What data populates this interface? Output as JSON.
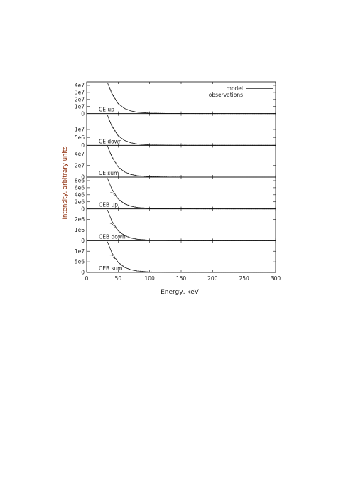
{
  "chart_data": {
    "type": "line",
    "xlabel": "Energy, keV",
    "ylabel": "Intensity, arbitrary units",
    "xlim": [
      0,
      300
    ],
    "xticks": [
      "0",
      "50",
      "100",
      "150",
      "200",
      "250",
      "300"
    ],
    "legend": {
      "placement": "top-right",
      "entries": [
        {
          "name": "model",
          "style": "solid"
        },
        {
          "name": "observations",
          "style": "dotted"
        }
      ]
    },
    "panels": [
      {
        "label": "CE up",
        "ylim": [
          0,
          45000000
        ],
        "yticks": [
          {
            "v": 0,
            "t": "0"
          },
          {
            "v": 10000000,
            "t": "1e7"
          },
          {
            "v": 20000000,
            "t": "2e7"
          },
          {
            "v": 30000000,
            "t": "3e7"
          },
          {
            "v": 40000000,
            "t": "4e7"
          }
        ],
        "series": [
          {
            "name": "model",
            "x": [
              33,
              40,
              50,
              60,
              70,
              80,
              100,
              130,
              170,
              220,
              300
            ],
            "y": [
              44000000,
              28000000,
              14000000,
              7200000,
              3800000,
              2000000,
              600000,
              150000,
              40000,
              10000,
              0
            ]
          },
          {
            "name": "observations",
            "x": [
              35,
              40,
              50,
              60,
              70,
              80,
              100,
              130,
              170,
              220,
              300
            ],
            "y": [
              40000000,
              29000000,
              14500000,
              7500000,
              3900000,
              2100000,
              700000,
              200000,
              60000,
              20000,
              0
            ]
          }
        ]
      },
      {
        "label": "CE down",
        "ylim": [
          0,
          20000000
        ],
        "yticks": [
          {
            "v": 0,
            "t": "0"
          },
          {
            "v": 5000000,
            "t": "5e6"
          },
          {
            "v": 10000000,
            "t": "1e7"
          }
        ],
        "series": [
          {
            "name": "model",
            "x": [
              33,
              40,
              50,
              60,
              70,
              80,
              100,
              130,
              170,
              220,
              300
            ],
            "y": [
              19000000,
              12000000,
              6000000,
              3100000,
              1600000,
              850000,
              260000,
              60000,
              15000,
              4000,
              0
            ]
          },
          {
            "name": "observations",
            "x": [
              35,
              40,
              50,
              60,
              70,
              80,
              100,
              130,
              170,
              220,
              300
            ],
            "y": [
              16500000,
              12500000,
              6200000,
              3200000,
              1700000,
              900000,
              300000,
              80000,
              25000,
              8000,
              0
            ]
          }
        ]
      },
      {
        "label": "CE sum",
        "ylim": [
          0,
          55000000
        ],
        "yticks": [
          {
            "v": 0,
            "t": "0"
          },
          {
            "v": 20000000,
            "t": "2e7"
          },
          {
            "v": 40000000,
            "t": "4e7"
          }
        ],
        "series": [
          {
            "name": "model",
            "x": [
              33,
              40,
              50,
              60,
              70,
              80,
              100,
              130,
              170,
              220,
              300
            ],
            "y": [
              54000000,
              35000000,
              17500000,
              9000000,
              4700000,
              2500000,
              750000,
              180000,
              45000,
              12000,
              0
            ]
          },
          {
            "name": "observations",
            "x": [
              35,
              40,
              50,
              60,
              70,
              80,
              100,
              130,
              170,
              220,
              300
            ],
            "y": [
              48000000,
              36000000,
              18000000,
              9300000,
              4900000,
              2600000,
              850000,
              250000,
              70000,
              25000,
              0
            ]
          }
        ]
      },
      {
        "label": "CEB up",
        "ylim": [
          0,
          9000000
        ],
        "yticks": [
          {
            "v": 0,
            "t": "0"
          },
          {
            "v": 2000000,
            "t": "2e6"
          },
          {
            "v": 4000000,
            "t": "4e6"
          },
          {
            "v": 6000000,
            "t": "6e6"
          },
          {
            "v": 8000000,
            "t": "8e6"
          }
        ],
        "series": [
          {
            "name": "model",
            "x": [
              33,
              40,
              50,
              60,
              70,
              80,
              100,
              130,
              170,
              220,
              300
            ],
            "y": [
              8700000,
              5600000,
              2800000,
              1450000,
              760000,
              400000,
              120000,
              30000,
              8000,
              2000,
              0
            ]
          },
          {
            "name": "observations",
            "x": [
              35,
              40,
              50,
              60,
              70,
              80,
              100,
              130,
              170,
              220,
              300
            ],
            "y": [
              4500000,
              4700000,
              2900000,
              1500000,
              800000,
              430000,
              140000,
              40000,
              12000,
              4000,
              0
            ]
          }
        ]
      },
      {
        "label": "CEB down",
        "ylim": [
          0,
          3000000
        ],
        "yticks": [
          {
            "v": 0,
            "t": "0"
          },
          {
            "v": 1000000,
            "t": "1e6"
          },
          {
            "v": 2000000,
            "t": "2e6"
          }
        ],
        "series": [
          {
            "name": "model",
            "x": [
              33,
              40,
              50,
              60,
              70,
              80,
              100,
              130,
              170,
              220,
              300
            ],
            "y": [
              2900000,
              1850000,
              930000,
              480000,
              250000,
              135000,
              40000,
              10000,
              2500,
              700,
              0
            ]
          },
          {
            "name": "observations",
            "x": [
              35,
              40,
              50,
              60,
              70,
              80,
              100,
              130,
              170,
              220,
              300
            ],
            "y": [
              1600000,
              1600000,
              960000,
              500000,
              265000,
              145000,
              46000,
              14000,
              4000,
              1200,
              0
            ]
          }
        ]
      },
      {
        "label": "CEB sum",
        "ylim": [
          0,
          15000000
        ],
        "yticks": [
          {
            "v": 0,
            "t": "0"
          },
          {
            "v": 5000000,
            "t": "5e6"
          },
          {
            "v": 10000000,
            "t": "1e7"
          }
        ],
        "series": [
          {
            "name": "model",
            "x": [
              33,
              40,
              50,
              60,
              70,
              80,
              100,
              130,
              170,
              220,
              300
            ],
            "y": [
              14500000,
              9300000,
              4700000,
              2400000,
              1250000,
              670000,
              200000,
              50000,
              12000,
              3000,
              0
            ]
          },
          {
            "name": "observations",
            "x": [
              35,
              40,
              50,
              60,
              70,
              80,
              100,
              130,
              170,
              220,
              300
            ],
            "y": [
              8000000,
              8200000,
              4800000,
              2500000,
              1300000,
              700000,
              230000,
              70000,
              20000,
              6000,
              0
            ]
          }
        ]
      }
    ],
    "grid": false
  }
}
